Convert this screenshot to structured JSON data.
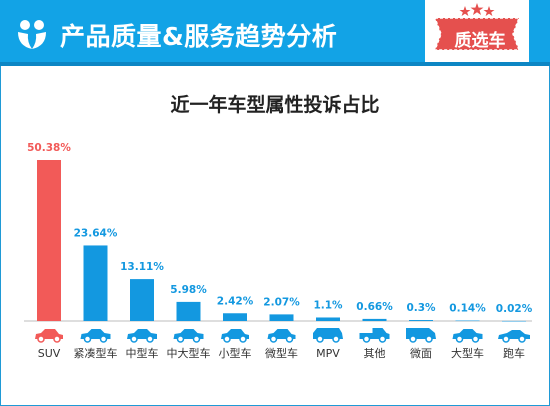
{
  "header": {
    "title": "产品质量&服务趋势分析",
    "brand": "质选车"
  },
  "colors": {
    "header_bg": "#12a3e6",
    "highlight_bar": "#f25a58",
    "bar": "#1398e0",
    "car_icon": "#1398e0",
    "highlight_car_icon": "#f25a58"
  },
  "chart_data": {
    "type": "bar",
    "title": "近一年车型属性投诉占比",
    "categories": [
      "SUV",
      "紧凑型车",
      "中型车",
      "中大型车",
      "小型车",
      "微型车",
      "MPV",
      "其他",
      "微面",
      "大型车",
      "跑车"
    ],
    "values": [
      50.38,
      23.64,
      13.11,
      5.98,
      2.42,
      2.07,
      1.1,
      0.66,
      0.3,
      0.14,
      0.02
    ],
    "value_labels": [
      "50.38%",
      "23.64%",
      "13.11%",
      "5.98%",
      "2.42%",
      "2.07%",
      "1.1%",
      "0.66%",
      "0.3%",
      "0.14%",
      "0.02%"
    ],
    "highlight_index": 0,
    "ylim": [
      0,
      50.38
    ],
    "icons": [
      "hatchback-icon",
      "sedan-icon",
      "sedan-icon",
      "sedan-icon",
      "hatchback-icon",
      "hatchback-icon",
      "mpv-icon",
      "pickup-icon",
      "van-icon",
      "sedan-icon",
      "sports-car-icon"
    ]
  }
}
